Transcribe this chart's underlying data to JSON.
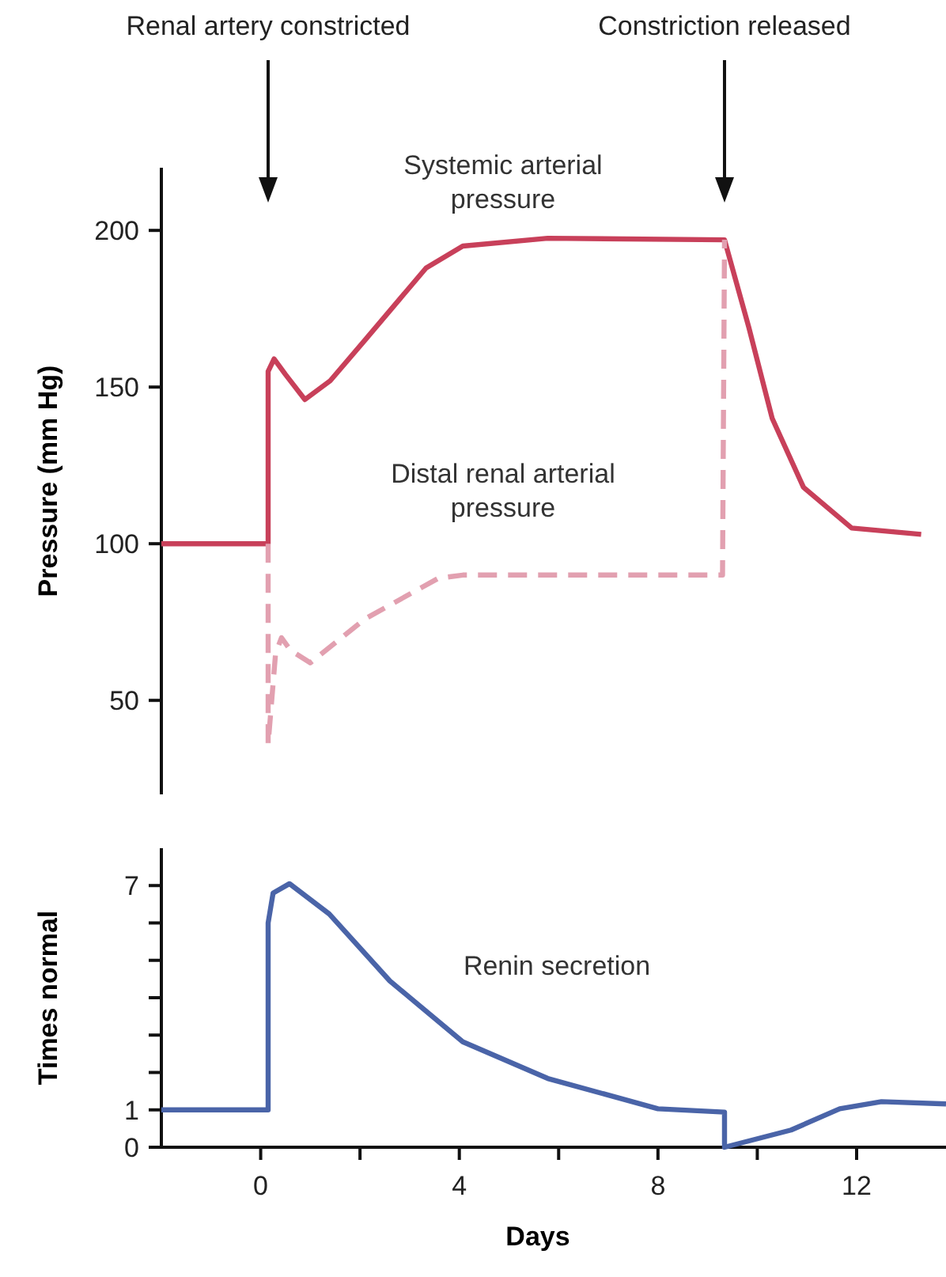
{
  "chart_data": [
    {
      "type": "line",
      "ylabel": "Pressure (mm Hg)",
      "xlim": [
        -2,
        13.8
      ],
      "ylim": [
        20,
        220
      ],
      "yticks": [
        50,
        100,
        150,
        200
      ],
      "tick_labels": "y",
      "annotations": [
        {
          "text": "Renal artery constricted",
          "x": 0.15
        },
        {
          "text": "Constriction released",
          "x": 9.34
        }
      ],
      "series": [
        {
          "name": "Systemic arterial pressure",
          "color": "#c8405a",
          "line_style": "solid",
          "x": [
            -2,
            0.15,
            0.15,
            0.27,
            0.5,
            0.89,
            1.4,
            2.1,
            3.33,
            4.07,
            5.78,
            9.34,
            9.83,
            10.3,
            10.93,
            11.9,
            13.3
          ],
          "values": [
            100,
            100,
            155,
            159,
            154,
            146,
            152,
            165,
            188,
            195,
            197.5,
            197,
            169,
            140,
            118,
            105,
            103
          ]
        },
        {
          "name": "Distal renal arterial pressure",
          "color": "#e2a0b0",
          "line_style": "dashed",
          "x": [
            0.15,
            0.15,
            0.3,
            0.42,
            0.6,
            1.0,
            2.1,
            3.58,
            4.07,
            9.3,
            9.34
          ],
          "values": [
            100,
            36,
            65,
            70,
            66,
            62,
            76,
            89,
            90,
            90,
            197
          ]
        }
      ]
    },
    {
      "type": "line",
      "xlabel": "Days",
      "ylabel": "Times normal",
      "xlim": [
        -2,
        13.8
      ],
      "ylim": [
        0,
        8
      ],
      "xticks": [
        0,
        {
          "value": 2,
          "label": null
        },
        4,
        {
          "value": 6,
          "label": null
        },
        8,
        {
          "value": 10,
          "label": null
        },
        12
      ],
      "yticks": [
        0,
        1,
        {
          "value": 2,
          "label": null
        },
        {
          "value": 3,
          "label": null
        },
        {
          "value": 4,
          "label": null
        },
        {
          "value": 5,
          "label": null
        },
        {
          "value": 6,
          "label": null
        },
        7
      ],
      "series": [
        {
          "name": "Renin secretion",
          "color": "#4a64a8",
          "line_style": "solid",
          "x": [
            -2,
            0.15,
            0.15,
            0.25,
            0.58,
            1.38,
            2.6,
            4.07,
            5.78,
            8,
            9.34,
            9.34,
            10.68,
            11.66,
            12.5,
            13.8
          ],
          "values": [
            1,
            1,
            6,
            6.8,
            7.05,
            6.24,
            4.45,
            2.82,
            1.84,
            1.03,
            0.94,
            0,
            0.46,
            1.03,
            1.22,
            1.16
          ]
        }
      ]
    }
  ]
}
